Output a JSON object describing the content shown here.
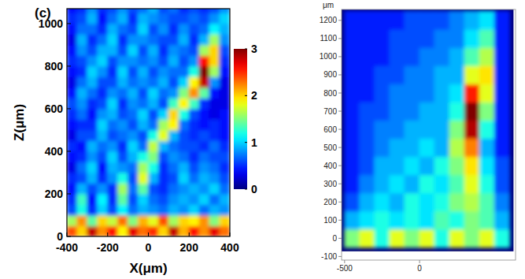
{
  "chart_data": [
    {
      "type": "heatmap",
      "title": "(c)",
      "xlabel": "X(μm)",
      "ylabel": "Z(μm)",
      "xlim": [
        -400,
        400
      ],
      "ylim": [
        0,
        1070
      ],
      "xticks": [
        -400,
        -200,
        0,
        200,
        400
      ],
      "yticks": [
        0,
        200,
        400,
        600,
        800,
        1000
      ],
      "zlim": [
        0,
        3
      ],
      "colorbar_ticks": [
        0,
        1,
        2,
        3
      ],
      "x": [
        -375,
        -325,
        -275,
        -225,
        -175,
        -125,
        -75,
        -25,
        25,
        75,
        125,
        175,
        225,
        275,
        325,
        375
      ],
      "y": [
        25,
        75,
        125,
        175,
        225,
        275,
        325,
        375,
        425,
        475,
        525,
        575,
        625,
        675,
        725,
        775,
        825,
        875,
        925,
        975,
        1025,
        1075
      ],
      "cells": [
        [
          2.4,
          2.0,
          2.8,
          2.2,
          2.6,
          1.9,
          2.7,
          2.3,
          2.5,
          2.0,
          2.8,
          2.1,
          2.6,
          2.2,
          2.7,
          2.3
        ],
        [
          1.6,
          2.2,
          1.4,
          2.0,
          1.7,
          2.3,
          1.5,
          2.1,
          1.8,
          2.4,
          1.6,
          2.0,
          1.9,
          2.2,
          1.5,
          2.0
        ],
        [
          0.6,
          1.2,
          0.5,
          1.0,
          0.6,
          1.1,
          0.7,
          0.9,
          0.8,
          0.7,
          0.9,
          0.8,
          1.0,
          0.7,
          0.9,
          0.8
        ],
        [
          0.5,
          1.3,
          0.4,
          1.1,
          0.5,
          1.4,
          0.6,
          1.0,
          0.7,
          0.6,
          0.8,
          0.9,
          0.8,
          1.0,
          0.7,
          0.9
        ],
        [
          0.4,
          0.9,
          0.6,
          0.8,
          0.5,
          1.6,
          0.7,
          1.4,
          0.6,
          0.5,
          0.7,
          0.8,
          0.9,
          0.8,
          1.0,
          0.7
        ],
        [
          0.5,
          0.6,
          0.9,
          0.5,
          0.8,
          1.2,
          0.6,
          1.8,
          0.9,
          0.5,
          0.6,
          1.0,
          0.7,
          0.9,
          0.8,
          0.6
        ],
        [
          0.3,
          0.7,
          1.0,
          0.4,
          0.9,
          0.8,
          0.7,
          1.6,
          1.2,
          0.5,
          0.7,
          0.9,
          0.6,
          0.8,
          0.7,
          0.5
        ],
        [
          0.4,
          0.5,
          0.8,
          0.6,
          1.0,
          0.6,
          0.9,
          1.2,
          1.5,
          0.6,
          0.8,
          0.7,
          0.5,
          0.7,
          0.6,
          0.6
        ],
        [
          0.5,
          0.4,
          0.9,
          0.7,
          0.8,
          0.5,
          1.0,
          0.7,
          1.7,
          0.9,
          0.7,
          0.6,
          0.6,
          0.5,
          0.7,
          0.5
        ],
        [
          0.3,
          0.6,
          0.6,
          0.9,
          0.6,
          0.7,
          0.8,
          0.6,
          1.2,
          1.8,
          0.9,
          0.6,
          0.5,
          0.6,
          0.5,
          0.4
        ],
        [
          0.4,
          0.5,
          0.5,
          1.0,
          0.7,
          0.8,
          0.6,
          0.9,
          0.7,
          1.6,
          1.9,
          0.7,
          0.5,
          0.4,
          0.5,
          0.4
        ],
        [
          0.5,
          0.7,
          0.4,
          0.8,
          0.9,
          0.6,
          0.7,
          1.0,
          0.6,
          1.0,
          2.0,
          1.2,
          0.6,
          0.4,
          0.3,
          0.4
        ],
        [
          0.6,
          0.8,
          0.5,
          0.6,
          1.0,
          0.5,
          0.8,
          0.7,
          0.9,
          0.6,
          1.3,
          1.9,
          1.3,
          0.5,
          0.3,
          0.3
        ],
        [
          0.4,
          0.9,
          0.7,
          0.5,
          0.8,
          0.7,
          0.9,
          0.6,
          1.0,
          0.7,
          0.8,
          1.5,
          2.2,
          1.4,
          0.4,
          0.3
        ],
        [
          0.3,
          0.7,
          0.9,
          0.6,
          0.6,
          0.9,
          0.7,
          0.8,
          0.7,
          0.9,
          0.6,
          1.0,
          1.9,
          2.8,
          0.8,
          0.3
        ],
        [
          0.4,
          0.5,
          1.0,
          0.8,
          0.5,
          1.0,
          0.6,
          0.9,
          0.6,
          0.8,
          0.7,
          0.7,
          1.2,
          3.0,
          1.6,
          0.4
        ],
        [
          0.5,
          0.6,
          0.8,
          1.0,
          0.6,
          0.8,
          0.8,
          0.7,
          0.8,
          0.6,
          0.9,
          0.6,
          0.8,
          2.6,
          2.0,
          0.5
        ],
        [
          0.4,
          0.8,
          0.6,
          0.9,
          0.9,
          0.6,
          1.0,
          0.6,
          0.9,
          0.5,
          0.8,
          0.7,
          0.6,
          1.6,
          2.0,
          0.6
        ],
        [
          0.3,
          0.9,
          0.5,
          0.7,
          1.0,
          0.5,
          0.8,
          0.8,
          0.7,
          0.6,
          0.6,
          0.9,
          0.5,
          0.9,
          1.6,
          0.8
        ],
        [
          0.4,
          0.7,
          0.7,
          0.5,
          0.9,
          0.7,
          0.6,
          1.0,
          0.6,
          0.8,
          0.5,
          0.8,
          0.6,
          0.7,
          1.1,
          0.9
        ],
        [
          0.5,
          0.6,
          0.9,
          0.4,
          0.7,
          0.9,
          0.5,
          0.9,
          0.8,
          0.7,
          0.6,
          0.6,
          0.7,
          0.6,
          0.8,
          1.0
        ],
        [
          0.4,
          0.5,
          0.8,
          0.5,
          0.6,
          0.8,
          0.6,
          0.7,
          0.9,
          0.6,
          0.7,
          0.5,
          0.6,
          0.5,
          0.6,
          0.8
        ]
      ]
    },
    {
      "type": "heatmap",
      "ylabel": "μm",
      "xlim": [
        -520,
        640
      ],
      "ylim": [
        -120,
        1260
      ],
      "xticks": [
        -500,
        0
      ],
      "yticks": [
        -100,
        0,
        100,
        200,
        300,
        400,
        500,
        600,
        700,
        800,
        900,
        1000,
        1100,
        1200
      ],
      "zlim": [
        0,
        1
      ],
      "x": [
        -450,
        -350,
        -250,
        -150,
        -50,
        50,
        150,
        250,
        350,
        450,
        550
      ],
      "y": [
        0,
        100,
        200,
        300,
        400,
        500,
        600,
        700,
        800,
        900,
        1000,
        1100,
        1200
      ],
      "cells": [
        [
          0.5,
          0.6,
          0.4,
          0.6,
          0.5,
          0.6,
          0.4,
          0.6,
          0.5,
          0.6,
          0.4
        ],
        [
          0.3,
          0.35,
          0.4,
          0.35,
          0.4,
          0.35,
          0.45,
          0.4,
          0.5,
          0.45,
          0.3
        ],
        [
          0.2,
          0.3,
          0.35,
          0.3,
          0.4,
          0.35,
          0.4,
          0.5,
          0.55,
          0.45,
          0.25
        ],
        [
          0.15,
          0.25,
          0.3,
          0.35,
          0.3,
          0.4,
          0.35,
          0.45,
          0.6,
          0.4,
          0.2
        ],
        [
          0.15,
          0.2,
          0.3,
          0.3,
          0.35,
          0.3,
          0.4,
          0.5,
          0.65,
          0.35,
          0.2
        ],
        [
          0.15,
          0.2,
          0.25,
          0.3,
          0.3,
          0.35,
          0.3,
          0.55,
          0.75,
          0.3,
          0.15
        ],
        [
          0.15,
          0.2,
          0.25,
          0.25,
          0.3,
          0.3,
          0.3,
          0.5,
          0.95,
          0.4,
          0.15
        ],
        [
          0.15,
          0.2,
          0.2,
          0.25,
          0.25,
          0.3,
          0.3,
          0.4,
          1.0,
          0.5,
          0.15
        ],
        [
          0.15,
          0.15,
          0.2,
          0.25,
          0.25,
          0.25,
          0.3,
          0.35,
          0.85,
          0.6,
          0.15
        ],
        [
          0.15,
          0.15,
          0.2,
          0.2,
          0.25,
          0.25,
          0.3,
          0.3,
          0.6,
          0.65,
          0.15
        ],
        [
          0.15,
          0.15,
          0.15,
          0.2,
          0.2,
          0.25,
          0.25,
          0.3,
          0.45,
          0.55,
          0.15
        ],
        [
          0.15,
          0.15,
          0.15,
          0.2,
          0.2,
          0.2,
          0.25,
          0.25,
          0.35,
          0.45,
          0.15
        ],
        [
          0.15,
          0.15,
          0.15,
          0.15,
          0.2,
          0.2,
          0.2,
          0.25,
          0.3,
          0.35,
          0.15
        ]
      ]
    }
  ]
}
